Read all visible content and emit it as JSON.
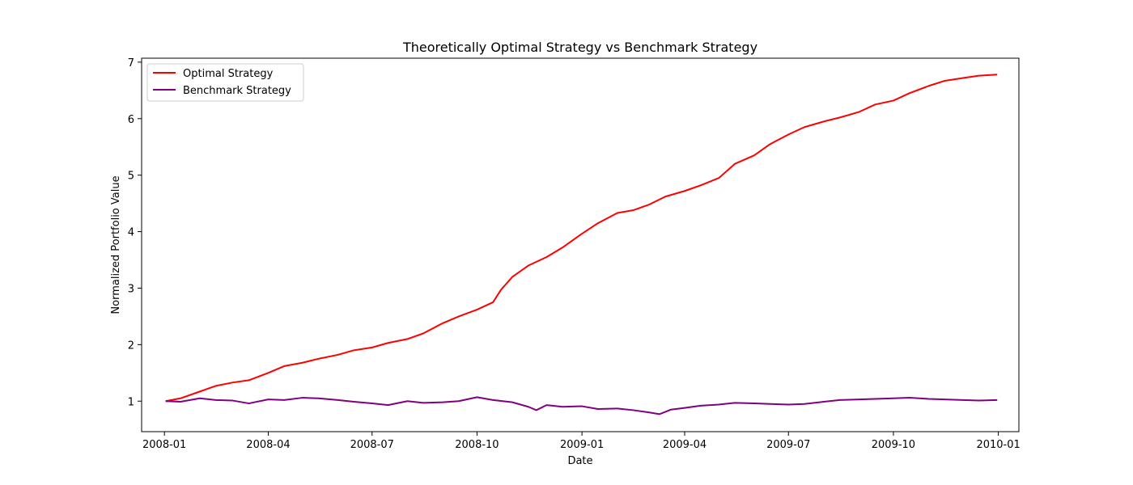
{
  "chart_data": {
    "type": "line",
    "title": "Theoretically Optimal Strategy vs Benchmark Strategy",
    "xlabel": "Date",
    "ylabel": "Normalized Portfolio Value",
    "x_ticks": [
      "2008-01",
      "2008-04",
      "2008-07",
      "2008-10",
      "2009-01",
      "2009-04",
      "2009-07",
      "2009-10",
      "2010-01"
    ],
    "y_ticks": [
      "1",
      "2",
      "3",
      "4",
      "5",
      "6",
      "7"
    ],
    "xlim": [
      "2007-12-12",
      "2010-01-19"
    ],
    "ylim": [
      0.46,
      7.07
    ],
    "grid": false,
    "legend_position": "upper left",
    "series": [
      {
        "name": "Optimal Strategy",
        "color": "#ff0000",
        "points": [
          [
            "2008-01-02",
            1.0
          ],
          [
            "2008-01-15",
            1.05
          ],
          [
            "2008-02-01",
            1.17
          ],
          [
            "2008-02-15",
            1.27
          ],
          [
            "2008-03-01",
            1.33
          ],
          [
            "2008-03-15",
            1.37
          ],
          [
            "2008-04-01",
            1.5
          ],
          [
            "2008-04-15",
            1.62
          ],
          [
            "2008-05-01",
            1.68
          ],
          [
            "2008-05-15",
            1.75
          ],
          [
            "2008-06-01",
            1.82
          ],
          [
            "2008-06-15",
            1.9
          ],
          [
            "2008-07-01",
            1.95
          ],
          [
            "2008-07-15",
            2.03
          ],
          [
            "2008-08-01",
            2.1
          ],
          [
            "2008-08-15",
            2.2
          ],
          [
            "2008-09-01",
            2.38
          ],
          [
            "2008-09-15",
            2.5
          ],
          [
            "2008-10-01",
            2.62
          ],
          [
            "2008-10-15",
            2.75
          ],
          [
            "2008-10-22",
            2.97
          ],
          [
            "2008-11-01",
            3.2
          ],
          [
            "2008-11-15",
            3.4
          ],
          [
            "2008-12-01",
            3.55
          ],
          [
            "2008-12-15",
            3.72
          ],
          [
            "2008-12-31",
            3.95
          ],
          [
            "2009-01-15",
            4.15
          ],
          [
            "2009-02-01",
            4.33
          ],
          [
            "2009-02-15",
            4.38
          ],
          [
            "2009-03-01",
            4.48
          ],
          [
            "2009-03-15",
            4.62
          ],
          [
            "2009-04-01",
            4.72
          ],
          [
            "2009-04-15",
            4.82
          ],
          [
            "2009-05-01",
            4.95
          ],
          [
            "2009-05-15",
            5.2
          ],
          [
            "2009-06-01",
            5.35
          ],
          [
            "2009-06-15",
            5.55
          ],
          [
            "2009-07-01",
            5.72
          ],
          [
            "2009-07-15",
            5.85
          ],
          [
            "2009-08-01",
            5.95
          ],
          [
            "2009-08-15",
            6.02
          ],
          [
            "2009-09-01",
            6.12
          ],
          [
            "2009-09-15",
            6.25
          ],
          [
            "2009-10-01",
            6.32
          ],
          [
            "2009-10-15",
            6.45
          ],
          [
            "2009-11-01",
            6.58
          ],
          [
            "2009-11-15",
            6.67
          ],
          [
            "2009-12-01",
            6.72
          ],
          [
            "2009-12-15",
            6.76
          ],
          [
            "2009-12-31",
            6.78
          ]
        ]
      },
      {
        "name": "Benchmark Strategy",
        "color": "#800080",
        "points": [
          [
            "2008-01-02",
            1.0
          ],
          [
            "2008-01-15",
            0.99
          ],
          [
            "2008-02-01",
            1.05
          ],
          [
            "2008-02-15",
            1.02
          ],
          [
            "2008-03-01",
            1.01
          ],
          [
            "2008-03-15",
            0.96
          ],
          [
            "2008-04-01",
            1.03
          ],
          [
            "2008-04-15",
            1.02
          ],
          [
            "2008-05-01",
            1.06
          ],
          [
            "2008-05-15",
            1.05
          ],
          [
            "2008-06-01",
            1.02
          ],
          [
            "2008-06-15",
            0.99
          ],
          [
            "2008-07-01",
            0.96
          ],
          [
            "2008-07-15",
            0.93
          ],
          [
            "2008-08-01",
            1.0
          ],
          [
            "2008-08-15",
            0.97
          ],
          [
            "2008-09-01",
            0.98
          ],
          [
            "2008-09-15",
            1.0
          ],
          [
            "2008-10-01",
            1.07
          ],
          [
            "2008-10-15",
            1.02
          ],
          [
            "2008-11-01",
            0.98
          ],
          [
            "2008-11-15",
            0.9
          ],
          [
            "2008-11-22",
            0.84
          ],
          [
            "2008-12-01",
            0.93
          ],
          [
            "2008-12-15",
            0.9
          ],
          [
            "2009-01-01",
            0.91
          ],
          [
            "2009-01-15",
            0.86
          ],
          [
            "2009-02-01",
            0.87
          ],
          [
            "2009-02-15",
            0.84
          ],
          [
            "2009-03-01",
            0.8
          ],
          [
            "2009-03-10",
            0.77
          ],
          [
            "2009-03-20",
            0.85
          ],
          [
            "2009-04-01",
            0.88
          ],
          [
            "2009-04-15",
            0.92
          ],
          [
            "2009-05-01",
            0.94
          ],
          [
            "2009-05-15",
            0.97
          ],
          [
            "2009-06-01",
            0.96
          ],
          [
            "2009-06-15",
            0.95
          ],
          [
            "2009-07-01",
            0.94
          ],
          [
            "2009-07-15",
            0.95
          ],
          [
            "2009-08-01",
            0.99
          ],
          [
            "2009-08-15",
            1.02
          ],
          [
            "2009-09-01",
            1.03
          ],
          [
            "2009-09-15",
            1.04
          ],
          [
            "2009-10-01",
            1.05
          ],
          [
            "2009-10-15",
            1.06
          ],
          [
            "2009-11-01",
            1.04
          ],
          [
            "2009-11-15",
            1.03
          ],
          [
            "2009-12-01",
            1.02
          ],
          [
            "2009-12-15",
            1.01
          ],
          [
            "2009-12-31",
            1.02
          ]
        ]
      }
    ]
  }
}
